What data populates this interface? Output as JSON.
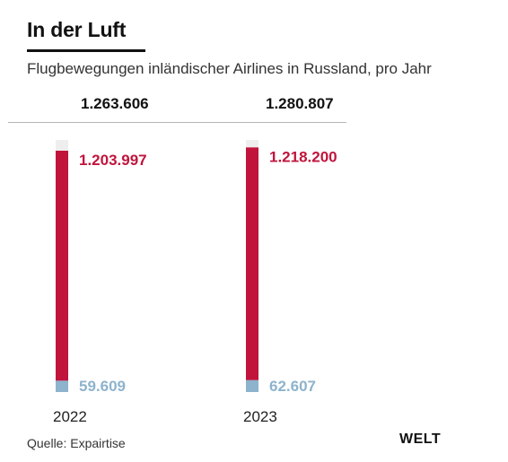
{
  "header": {
    "title": "In der Luft",
    "subtitle": "Flugbewegungen inländischer Airlines in Russland, pro Jahr"
  },
  "footer": {
    "source": "Quelle: Expairtise",
    "brand": "WELT"
  },
  "colors": {
    "primary_series": "#c0143c",
    "secondary_series": "#8db3cd",
    "track": "#eeeeee",
    "axis_text": "#222222"
  },
  "chart_data": {
    "type": "bar",
    "stacked": true,
    "categories": [
      "2022",
      "2023"
    ],
    "totals": [
      1263606,
      1280807
    ],
    "total_labels": [
      "1.263.606",
      "1.280.807"
    ],
    "series": [
      {
        "values": [
          59609,
          62607
        ],
        "labels": [
          "59.609",
          "62.607"
        ],
        "color": "#8db3cd"
      },
      {
        "values": [
          1203997,
          1218200
        ],
        "labels": [
          "1.203.997",
          "1.218.200"
        ],
        "color": "#c0143c"
      }
    ]
  }
}
